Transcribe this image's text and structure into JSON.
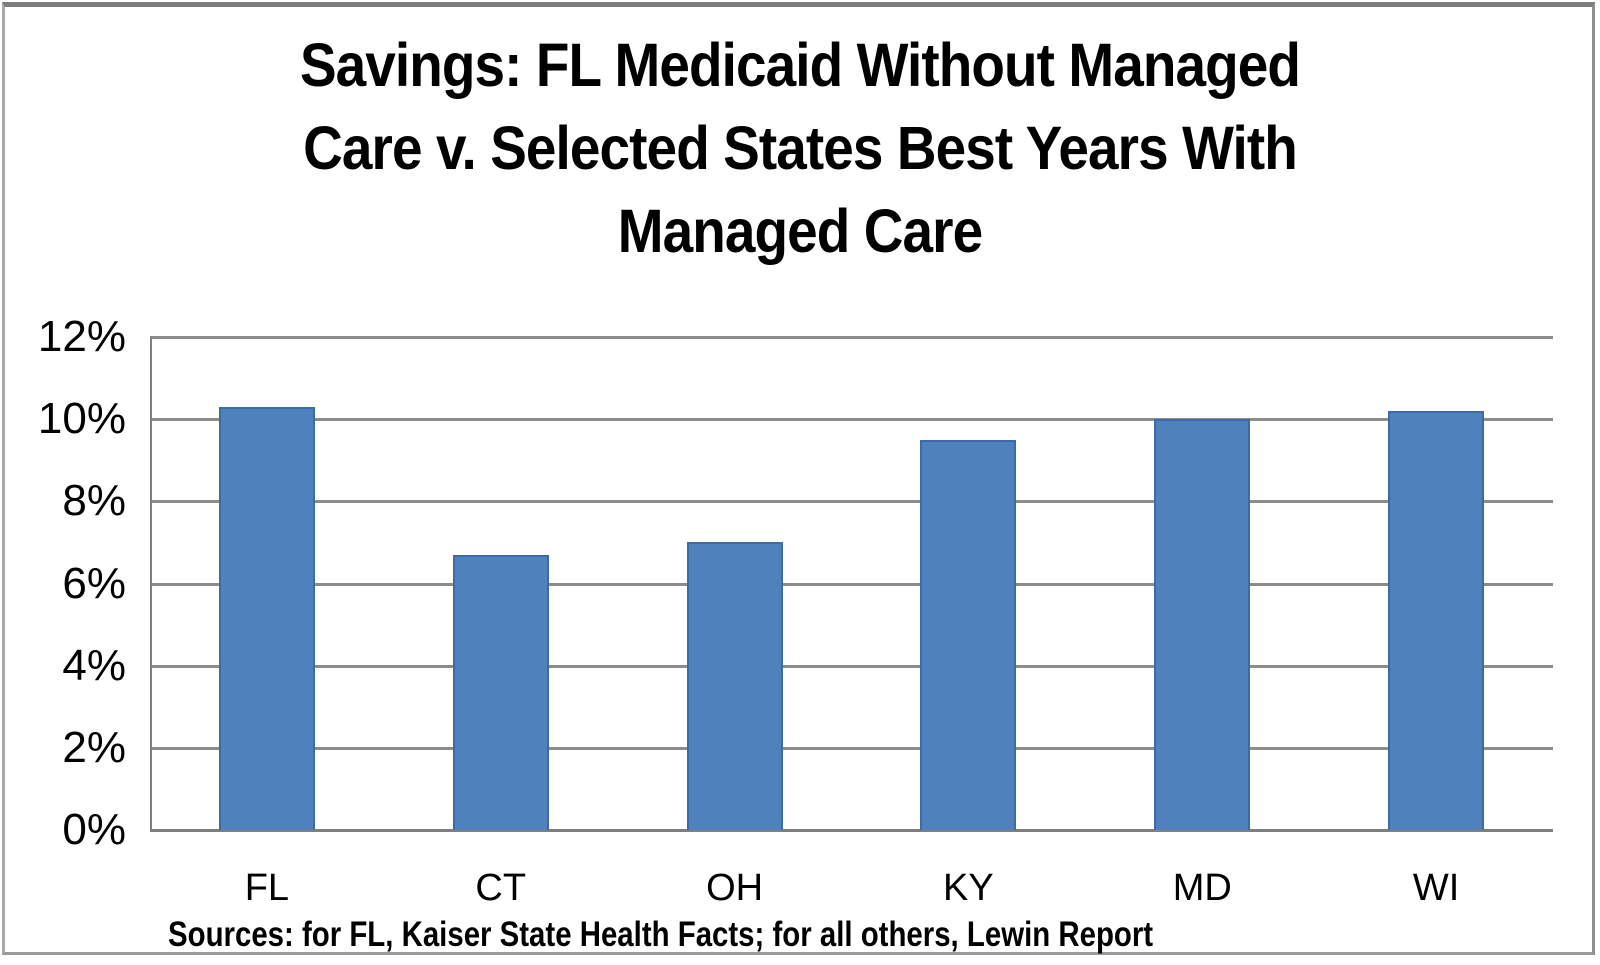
{
  "title": {
    "lines": [
      "Savings: FL Medicaid Without Managed",
      "Care v. Selected States Best Years With",
      "Managed Care"
    ]
  },
  "source": {
    "text": "Sources: for FL, Kaiser State Health Facts; for all others, Lewin Report"
  },
  "colors": {
    "bar_fill": "#4F81BD",
    "bar_border": "#3E6BA5",
    "gridline": "#8C8C8C",
    "axis": "#7F7F7F",
    "text": "#000000"
  },
  "chart_data": {
    "type": "bar",
    "title": "Savings: FL Medicaid Without Managed Care v. Selected States Best Years With Managed Care",
    "categories": [
      "FL",
      "CT",
      "OH",
      "KY",
      "MD",
      "WI"
    ],
    "values": [
      10.3,
      6.7,
      7.0,
      9.5,
      10.0,
      10.2
    ],
    "unit": "%",
    "xlabel": "",
    "ylabel": "",
    "ylim": [
      0,
      12
    ],
    "ytick_interval": 2,
    "ytick_labels": [
      "0%",
      "2%",
      "4%",
      "6%",
      "8%",
      "10%",
      "12%"
    ],
    "grid": true,
    "legend": false,
    "source_note": "Sources: for FL, Kaiser State Health Facts; for all others, Lewin Report"
  }
}
